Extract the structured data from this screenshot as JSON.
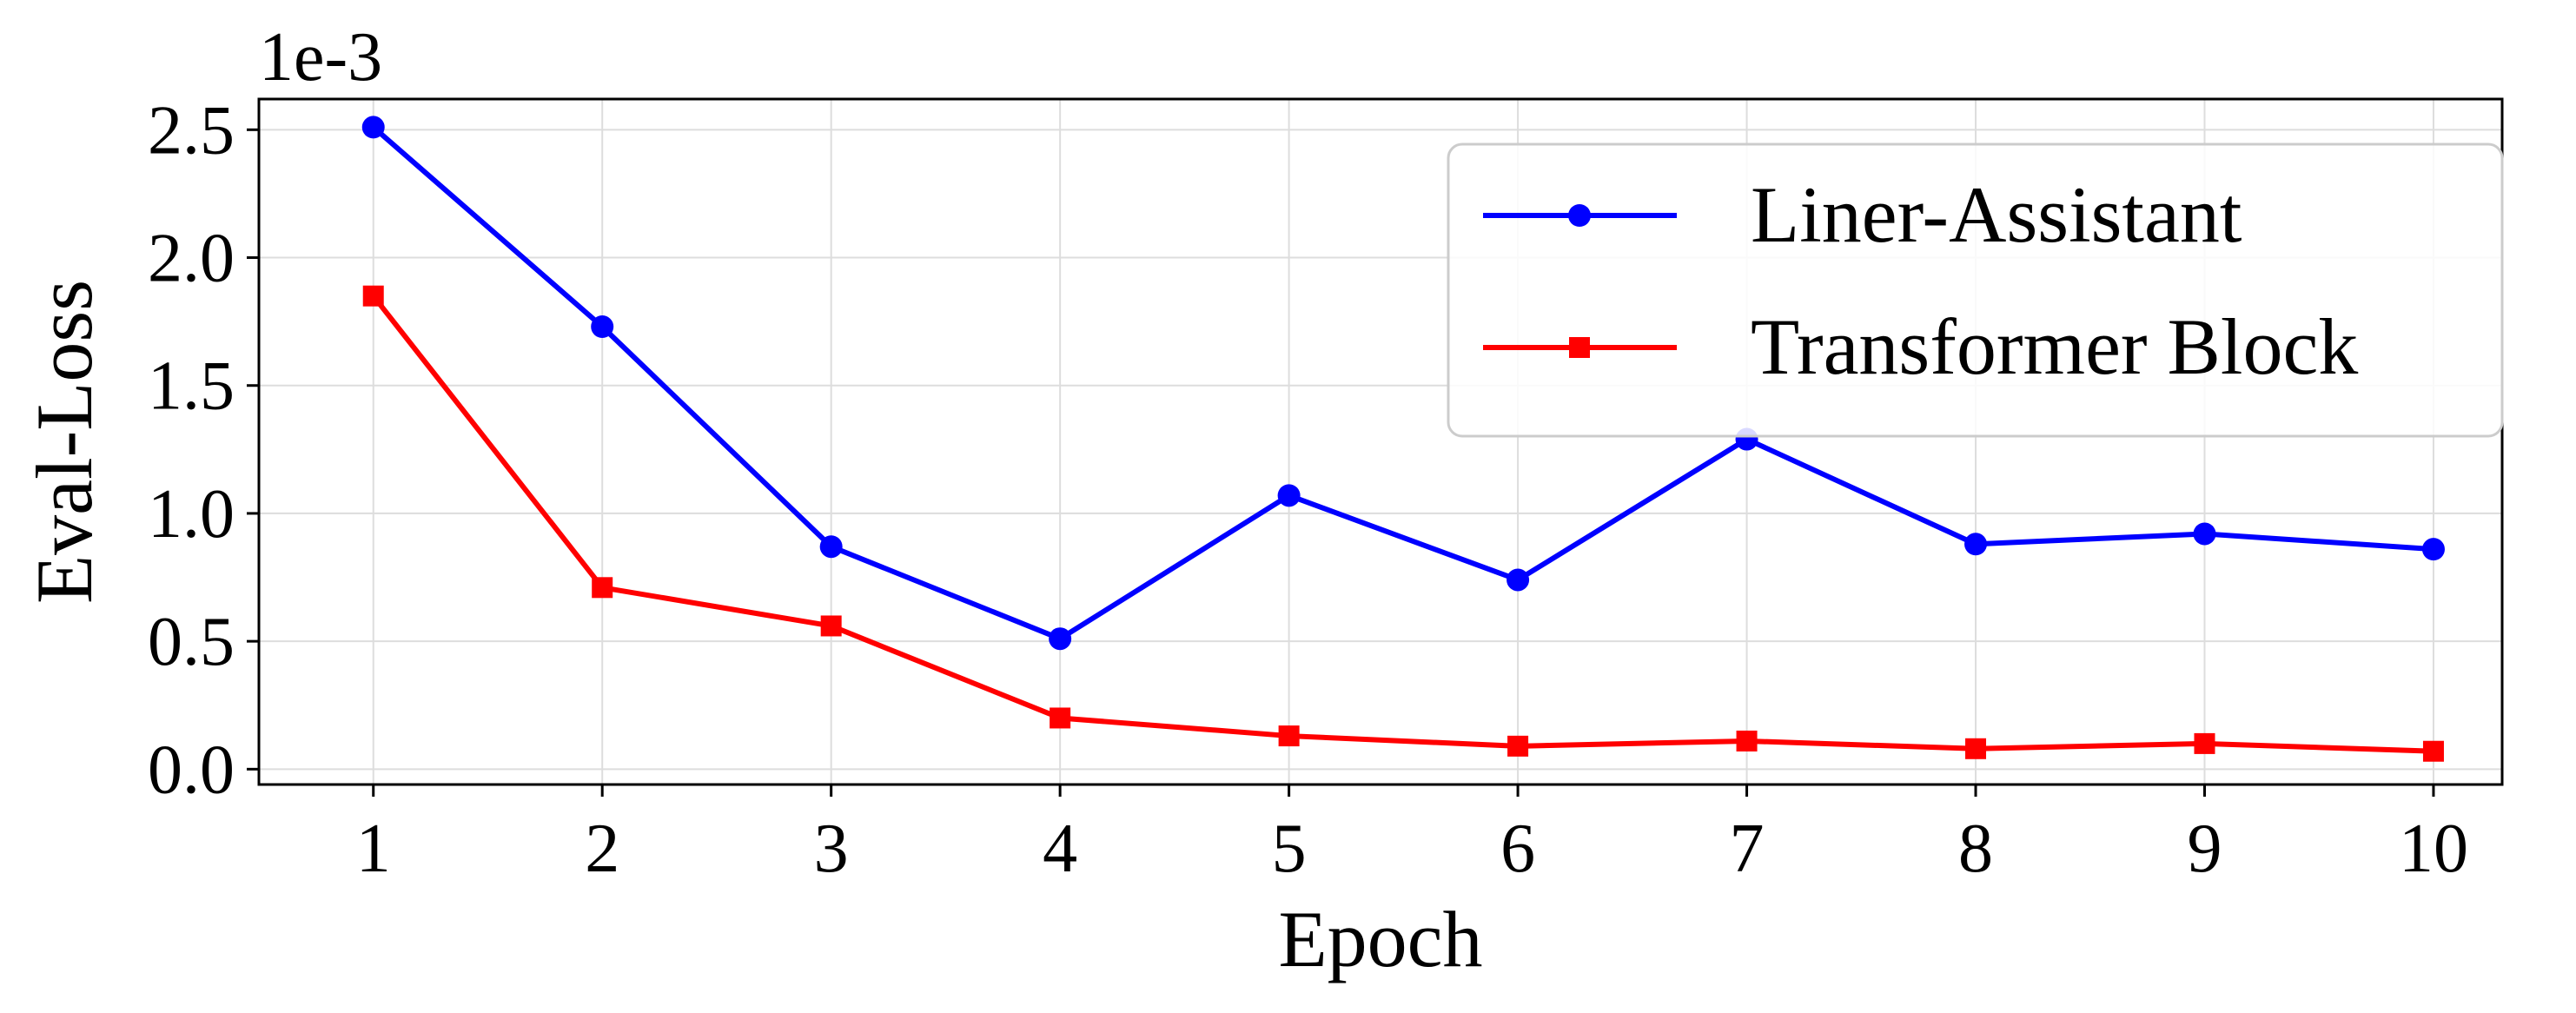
{
  "chart_data": {
    "type": "line",
    "x": [
      1,
      2,
      3,
      4,
      5,
      6,
      7,
      8,
      9,
      10
    ],
    "xlabel": "Epoch",
    "ylabel": "Eval-Loss",
    "y_multiplier_label": "1e-3",
    "xlim": [
      0.5,
      10.3
    ],
    "ylim": [
      -0.06,
      2.62
    ],
    "xticks": [
      "1",
      "2",
      "3",
      "4",
      "5",
      "6",
      "7",
      "8",
      "9",
      "10"
    ],
    "yticks": [
      "0.0",
      "0.5",
      "1.0",
      "1.5",
      "2.0",
      "2.5"
    ],
    "ytick_values": [
      0.0,
      0.5,
      1.0,
      1.5,
      2.0,
      2.5
    ],
    "grid": true,
    "legend_position": "top-right",
    "series": [
      {
        "name": "Liner-Assistant",
        "color": "#0000ff",
        "marker": "circle",
        "values": [
          2.51,
          1.73,
          0.87,
          0.51,
          1.07,
          0.74,
          1.29,
          0.88,
          0.92,
          0.86
        ]
      },
      {
        "name": "Transformer Block",
        "color": "#ff0000",
        "marker": "square",
        "values": [
          1.85,
          0.71,
          0.56,
          0.2,
          0.13,
          0.09,
          0.11,
          0.08,
          0.1,
          0.07
        ]
      }
    ]
  }
}
